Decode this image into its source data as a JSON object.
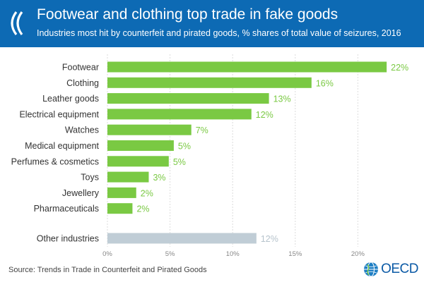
{
  "header": {
    "title": "Footwear and clothing top trade in fake goods",
    "subtitle": "Industries most hit by counterfeit and pirated goods, % shares of total value of seizures, 2016"
  },
  "chart_data": {
    "type": "bar",
    "orientation": "horizontal",
    "title": "Footwear and clothing top trade in fake goods",
    "subtitle": "Industries most hit by counterfeit and pirated goods, % shares of total value of seizures, 2016",
    "categories": [
      "Footwear",
      "Clothing",
      "Leather goods",
      "Electrical equipment",
      "Watches",
      "Medical equipment",
      "Perfumes & cosmetics",
      "Toys",
      "Jewellery",
      "Pharmaceuticals",
      "Other industries"
    ],
    "values": [
      22.3,
      16.3,
      12.9,
      11.5,
      6.7,
      5.3,
      4.9,
      3.3,
      2.3,
      2.0,
      11.9
    ],
    "value_labels": [
      "22%",
      "16%",
      "13%",
      "12%",
      "7%",
      "5%",
      "5%",
      "3%",
      "2%",
      "2%",
      "12%"
    ],
    "xlim": [
      0,
      25
    ],
    "x_ticks": [
      0,
      5,
      10,
      15,
      20
    ],
    "x_tick_labels": [
      "0%",
      "5%",
      "10%",
      "15%",
      "20%"
    ],
    "xlabel": "",
    "ylabel": "",
    "grid": true,
    "colors": {
      "main": "#7ac943",
      "other": "#c0cdd6",
      "main_label": "#7ac943",
      "other_label": "#b6c3cc"
    }
  },
  "footer": {
    "source": "Source: Trends in Trade in Counterfeit and Pirated Goods",
    "brand_logo_text": "OECD"
  }
}
